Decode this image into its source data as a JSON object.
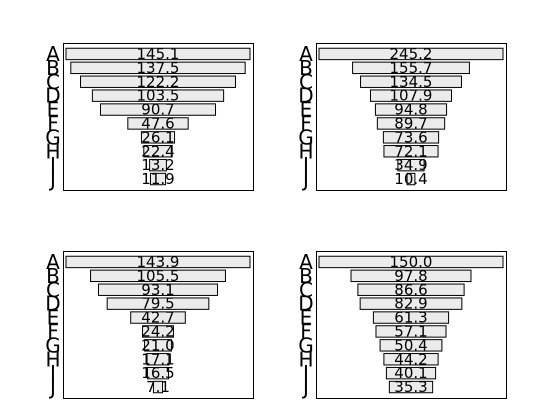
{
  "chart_data": [
    {
      "type": "bar",
      "orientation": "horizontal",
      "categories": [
        "A",
        "B",
        "C",
        "D",
        "E",
        "F",
        "G",
        "H",
        "I",
        "J"
      ],
      "values": [
        145.1,
        137.5,
        122.2,
        103.5,
        90.7,
        47.6,
        26.1,
        22.4,
        13.2,
        11.9
      ]
    },
    {
      "type": "bar",
      "orientation": "horizontal",
      "categories": [
        "A",
        "B",
        "C",
        "D",
        "E",
        "F",
        "G",
        "H",
        "I",
        "J"
      ],
      "values": [
        245.2,
        155.7,
        134.5,
        107.9,
        94.8,
        89.7,
        73.6,
        72.1,
        34.9,
        10.4
      ]
    },
    {
      "type": "bar",
      "orientation": "horizontal",
      "categories": [
        "A",
        "B",
        "C",
        "D",
        "E",
        "F",
        "G",
        "H",
        "I",
        "J"
      ],
      "values": [
        143.9,
        105.5,
        93.1,
        79.5,
        42.7,
        24.2,
        21.0,
        17.1,
        16.5,
        7.1
      ]
    },
    {
      "type": "bar",
      "orientation": "horizontal",
      "categories": [
        "A",
        "B",
        "C",
        "D",
        "E",
        "F",
        "G",
        "H",
        "I",
        "J"
      ],
      "values": [
        150.0,
        97.8,
        86.6,
        82.9,
        61.3,
        57.1,
        50.4,
        44.2,
        40.1,
        35.3
      ]
    }
  ]
}
